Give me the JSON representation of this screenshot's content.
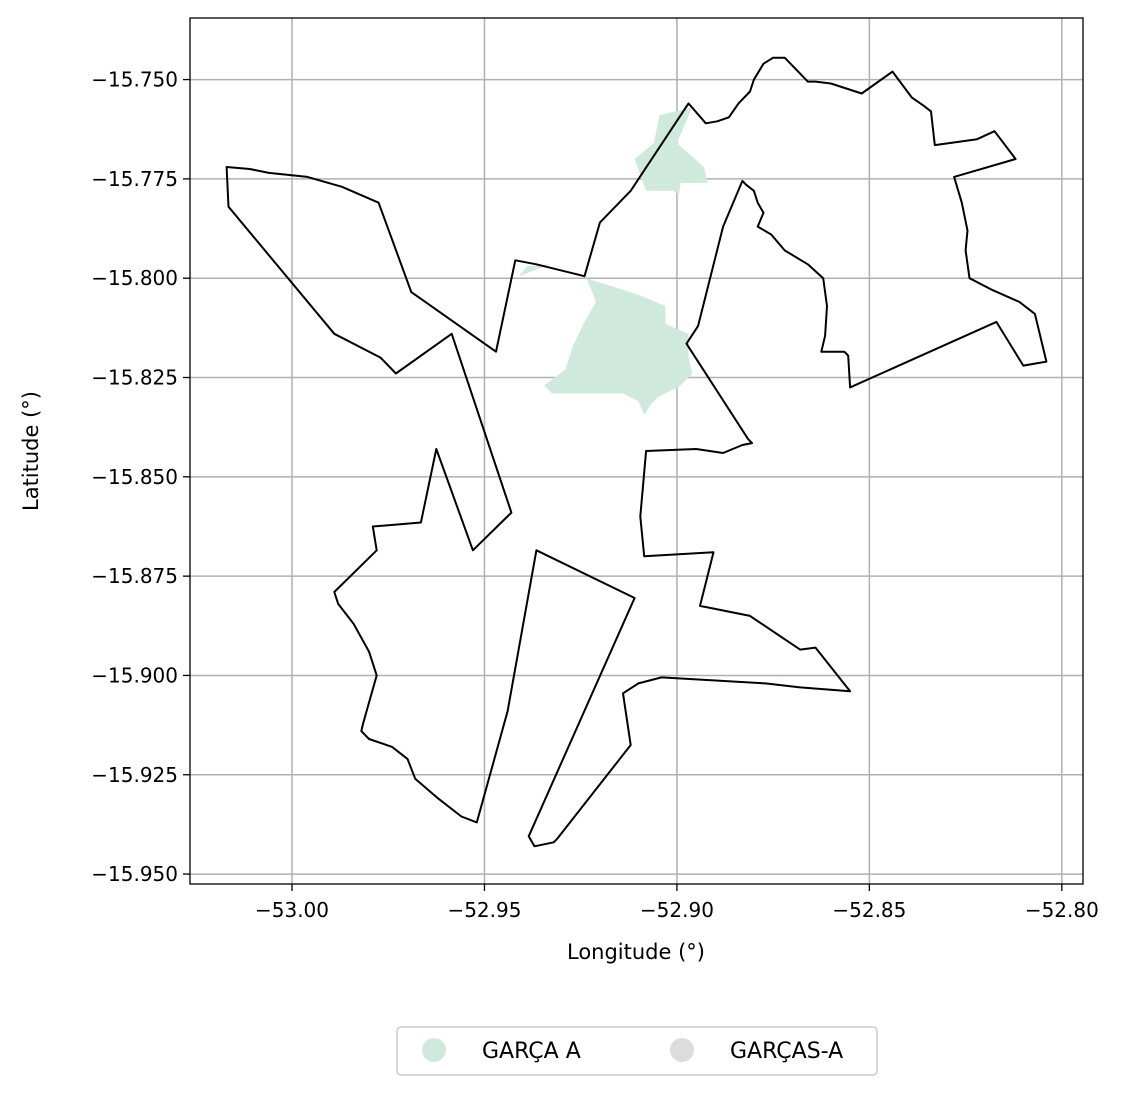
{
  "axes": {
    "xlabel": "Longitude (°)",
    "ylabel": "Latitude (°)",
    "xlim": [
      -53.0265,
      -52.7945
    ],
    "ylim": [
      -15.9525,
      -15.7345
    ],
    "x_ticks": [
      {
        "value": -53.0,
        "label": "−53.00"
      },
      {
        "value": -52.95,
        "label": "−52.95"
      },
      {
        "value": -52.9,
        "label": "−52.90"
      },
      {
        "value": -52.85,
        "label": "−52.85"
      },
      {
        "value": -52.8,
        "label": "−52.80"
      }
    ],
    "y_ticks": [
      {
        "value": -15.75,
        "label": "−15.750"
      },
      {
        "value": -15.775,
        "label": "−15.775"
      },
      {
        "value": -15.8,
        "label": "−15.800"
      },
      {
        "value": -15.825,
        "label": "−15.825"
      },
      {
        "value": -15.85,
        "label": "−15.850"
      },
      {
        "value": -15.875,
        "label": "−15.875"
      },
      {
        "value": -15.9,
        "label": "−15.900"
      },
      {
        "value": -15.925,
        "label": "−15.925"
      },
      {
        "value": -15.95,
        "label": "−15.950"
      }
    ],
    "grid": true
  },
  "colors": {
    "boundary": "#000000",
    "grid": "#b0b0b0",
    "garca_a": "#cfeadc",
    "garcas_a": "#dcdcdc"
  },
  "legend": {
    "position": "bottom-center",
    "items": [
      {
        "label": "GARÇA A",
        "color": "#cfeadc"
      },
      {
        "label": "GARÇAS-A",
        "color": "#dcdcdc"
      }
    ]
  },
  "map_data": {
    "garca_a_areas": [
      [
        [
          -52.9045,
          -15.759
        ],
        [
          -52.896,
          -15.757
        ],
        [
          -52.9,
          -15.766
        ],
        [
          -52.893,
          -15.772
        ],
        [
          -52.892,
          -15.776
        ],
        [
          -52.899,
          -15.776
        ],
        [
          -52.8995,
          -15.779
        ],
        [
          -52.901,
          -15.778
        ],
        [
          -52.908,
          -15.778
        ],
        [
          -52.911,
          -15.77
        ],
        [
          -52.906,
          -15.766
        ]
      ],
      [
        [
          -52.9235,
          -15.8
        ],
        [
          -52.9105,
          -15.804
        ],
        [
          -52.903,
          -15.807
        ],
        [
          -52.903,
          -15.8115
        ],
        [
          -52.897,
          -15.814
        ],
        [
          -52.897,
          -15.82
        ],
        [
          -52.896,
          -15.824
        ],
        [
          -52.899,
          -15.827
        ],
        [
          -52.905,
          -15.83
        ],
        [
          -52.907,
          -15.832
        ],
        [
          -52.9085,
          -15.8345
        ],
        [
          -52.91,
          -15.831
        ],
        [
          -52.914,
          -15.829
        ],
        [
          -52.925,
          -15.829
        ],
        [
          -52.9325,
          -15.829
        ],
        [
          -52.9345,
          -15.827
        ],
        [
          -52.929,
          -15.823
        ],
        [
          -52.927,
          -15.817
        ],
        [
          -52.924,
          -15.811
        ],
        [
          -52.921,
          -15.806
        ]
      ],
      [
        [
          -52.941,
          -15.7995
        ],
        [
          -52.933,
          -15.7965
        ],
        [
          -52.939,
          -15.797
        ]
      ],
      [
        [
          -52.875,
          -15.9
        ],
        [
          -52.8715,
          -15.902
        ],
        [
          -52.874,
          -15.9005
        ]
      ]
    ],
    "boundary": [
      [
        -53.017,
        -15.772
      ],
      [
        -53.011,
        -15.7725
      ],
      [
        -53.006,
        -15.7735
      ],
      [
        -52.996,
        -15.7745
      ],
      [
        -52.987,
        -15.777
      ],
      [
        -52.9775,
        -15.781
      ],
      [
        -52.969,
        -15.8035
      ],
      [
        -52.947,
        -15.8185
      ],
      [
        -52.942,
        -15.7955
      ],
      [
        -52.9365,
        -15.7965
      ],
      [
        -52.924,
        -15.7995
      ],
      [
        -52.92,
        -15.786
      ],
      [
        -52.912,
        -15.778
      ],
      [
        -52.897,
        -15.756
      ],
      [
        -52.8925,
        -15.761
      ],
      [
        -52.8895,
        -15.7605
      ],
      [
        -52.8865,
        -15.7595
      ],
      [
        -52.884,
        -15.756
      ],
      [
        -52.881,
        -15.753
      ],
      [
        -52.88,
        -15.75
      ],
      [
        -52.8775,
        -15.746
      ],
      [
        -52.875,
        -15.7445
      ],
      [
        -52.872,
        -15.7445
      ],
      [
        -52.866,
        -15.7505
      ],
      [
        -52.864,
        -15.7505
      ],
      [
        -52.86,
        -15.751
      ],
      [
        -52.852,
        -15.7535
      ],
      [
        -52.844,
        -15.748
      ],
      [
        -52.839,
        -15.7545
      ],
      [
        -52.836,
        -15.7565
      ],
      [
        -52.834,
        -15.758
      ],
      [
        -52.833,
        -15.7665
      ],
      [
        -52.822,
        -15.765
      ],
      [
        -52.8175,
        -15.763
      ],
      [
        -52.812,
        -15.77
      ],
      [
        -52.828,
        -15.7745
      ],
      [
        -52.826,
        -15.781
      ],
      [
        -52.8245,
        -15.788
      ],
      [
        -52.825,
        -15.793
      ],
      [
        -52.824,
        -15.8
      ],
      [
        -52.818,
        -15.803
      ],
      [
        -52.811,
        -15.806
      ],
      [
        -52.807,
        -15.809
      ],
      [
        -52.804,
        -15.821
      ],
      [
        -52.81,
        -15.822
      ],
      [
        -52.817,
        -15.811
      ],
      [
        -52.855,
        -15.8275
      ],
      [
        -52.8555,
        -15.8195
      ],
      [
        -52.8565,
        -15.8185
      ],
      [
        -52.859,
        -15.8185
      ],
      [
        -52.8625,
        -15.8185
      ],
      [
        -52.8615,
        -15.8145
      ],
      [
        -52.861,
        -15.807
      ],
      [
        -52.862,
        -15.8
      ],
      [
        -52.866,
        -15.7965
      ],
      [
        -52.872,
        -15.793
      ],
      [
        -52.8755,
        -15.789
      ],
      [
        -52.879,
        -15.787
      ],
      [
        -52.8775,
        -15.7835
      ],
      [
        -52.879,
        -15.781
      ],
      [
        -52.88,
        -15.778
      ],
      [
        -52.882,
        -15.7765
      ],
      [
        -52.883,
        -15.7755
      ],
      [
        -52.888,
        -15.787
      ],
      [
        -52.8945,
        -15.812
      ],
      [
        -52.8975,
        -15.8165
      ],
      [
        -52.8815,
        -15.8405
      ],
      [
        -52.8805,
        -15.8415
      ],
      [
        -52.883,
        -15.842
      ],
      [
        -52.888,
        -15.844
      ],
      [
        -52.895,
        -15.843
      ],
      [
        -52.908,
        -15.8435
      ],
      [
        -52.9095,
        -15.86
      ],
      [
        -52.9085,
        -15.87
      ],
      [
        -52.8905,
        -15.869
      ],
      [
        -52.894,
        -15.8825
      ],
      [
        -52.881,
        -15.885
      ],
      [
        -52.868,
        -15.8935
      ],
      [
        -52.864,
        -15.893
      ],
      [
        -52.855,
        -15.904
      ],
      [
        -52.868,
        -15.903
      ],
      [
        -52.877,
        -15.902
      ],
      [
        -52.904,
        -15.9005
      ],
      [
        -52.91,
        -15.902
      ],
      [
        -52.914,
        -15.9045
      ],
      [
        -52.912,
        -15.9175
      ],
      [
        -52.931,
        -15.941
      ],
      [
        -52.932,
        -15.942
      ],
      [
        -52.937,
        -15.943
      ],
      [
        -52.9385,
        -15.9405
      ],
      [
        -52.911,
        -15.8805
      ],
      [
        -52.9365,
        -15.8685
      ],
      [
        -52.944,
        -15.909
      ],
      [
        -52.952,
        -15.937
      ],
      [
        -52.956,
        -15.9355
      ],
      [
        -52.962,
        -15.931
      ],
      [
        -52.968,
        -15.926
      ],
      [
        -52.97,
        -15.921
      ],
      [
        -52.974,
        -15.918
      ],
      [
        -52.98,
        -15.916
      ],
      [
        -52.982,
        -15.914
      ],
      [
        -52.9815,
        -15.912
      ],
      [
        -52.978,
        -15.9
      ],
      [
        -52.98,
        -15.894
      ],
      [
        -52.984,
        -15.887
      ],
      [
        -52.988,
        -15.882
      ],
      [
        -52.989,
        -15.879
      ],
      [
        -52.978,
        -15.8685
      ],
      [
        -52.979,
        -15.8625
      ],
      [
        -52.9665,
        -15.8615
      ],
      [
        -52.9625,
        -15.843
      ],
      [
        -52.953,
        -15.8685
      ],
      [
        -52.943,
        -15.859
      ],
      [
        -52.9585,
        -15.814
      ],
      [
        -52.973,
        -15.824
      ],
      [
        -52.977,
        -15.82
      ],
      [
        -52.989,
        -15.814
      ],
      [
        -53.0165,
        -15.782
      ]
    ]
  }
}
